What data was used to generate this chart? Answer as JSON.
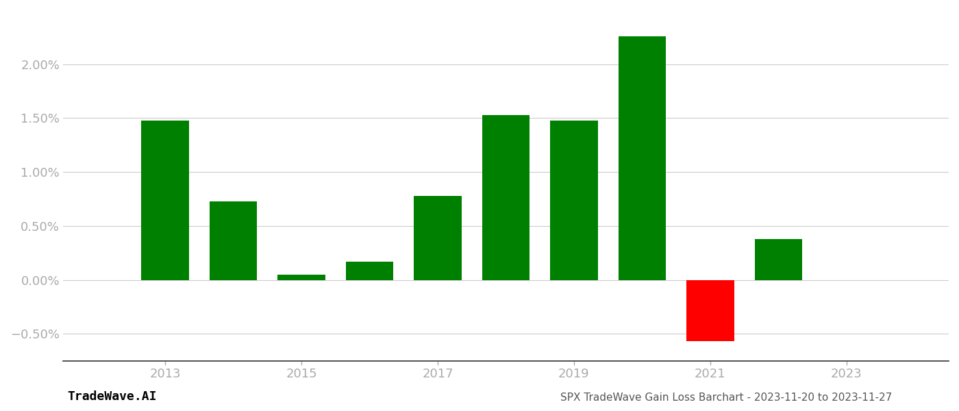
{
  "years": [
    2013,
    2014,
    2015,
    2016,
    2017,
    2018,
    2019,
    2020,
    2021,
    2022
  ],
  "values": [
    0.0148,
    0.0073,
    0.0005,
    0.0017,
    0.0078,
    0.0153,
    0.0148,
    0.0226,
    -0.0057,
    0.0038
  ],
  "colors": [
    "#008000",
    "#008000",
    "#008000",
    "#008000",
    "#008000",
    "#008000",
    "#008000",
    "#008000",
    "#ff0000",
    "#008000"
  ],
  "ylim": [
    -0.0075,
    0.025
  ],
  "yticks": [
    -0.005,
    0.0,
    0.005,
    0.01,
    0.015,
    0.02
  ],
  "ytick_labels": [
    "-0.50%",
    "0.00%",
    "0.50%",
    "1.00%",
    "1.50%",
    "2.00%"
  ],
  "xticks": [
    2013,
    2015,
    2017,
    2019,
    2021,
    2023
  ],
  "xlim": [
    2011.5,
    2024.5
  ],
  "bottom_left_text": "TradeWave.AI",
  "bottom_right_text": "SPX TradeWave Gain Loss Barchart - 2023-11-20 to 2023-11-27",
  "bg_color": "#ffffff",
  "grid_color": "#cccccc",
  "bar_width": 0.7,
  "label_color": "#aaaaaa",
  "tick_color": "#aaaaaa",
  "bottom_text_color": "#000000",
  "bottom_right_text_color": "#555555"
}
